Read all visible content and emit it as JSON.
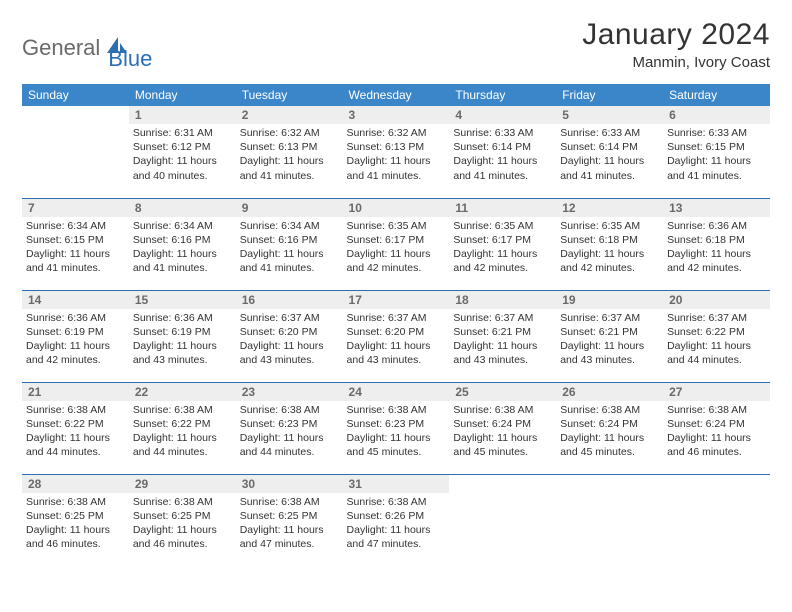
{
  "logo": {
    "part1": "General",
    "part2": "Blue"
  },
  "title": "January 2024",
  "location": "Manmin, Ivory Coast",
  "weekdays": [
    "Sunday",
    "Monday",
    "Tuesday",
    "Wednesday",
    "Thursday",
    "Friday",
    "Saturday"
  ],
  "colors": {
    "header_bg": "#3b86c9",
    "header_text": "#ffffff",
    "rule": "#2c6fb5",
    "daynum_bg": "#eeeeee",
    "daynum_text": "#6a6a6a",
    "logo_gray": "#6a6a6a",
    "logo_blue": "#2c6fb5"
  },
  "weeks": [
    [
      null,
      {
        "n": "1",
        "sunrise": "6:31 AM",
        "sunset": "6:12 PM",
        "daylight": "11 hours and 40 minutes."
      },
      {
        "n": "2",
        "sunrise": "6:32 AM",
        "sunset": "6:13 PM",
        "daylight": "11 hours and 41 minutes."
      },
      {
        "n": "3",
        "sunrise": "6:32 AM",
        "sunset": "6:13 PM",
        "daylight": "11 hours and 41 minutes."
      },
      {
        "n": "4",
        "sunrise": "6:33 AM",
        "sunset": "6:14 PM",
        "daylight": "11 hours and 41 minutes."
      },
      {
        "n": "5",
        "sunrise": "6:33 AM",
        "sunset": "6:14 PM",
        "daylight": "11 hours and 41 minutes."
      },
      {
        "n": "6",
        "sunrise": "6:33 AM",
        "sunset": "6:15 PM",
        "daylight": "11 hours and 41 minutes."
      }
    ],
    [
      {
        "n": "7",
        "sunrise": "6:34 AM",
        "sunset": "6:15 PM",
        "daylight": "11 hours and 41 minutes."
      },
      {
        "n": "8",
        "sunrise": "6:34 AM",
        "sunset": "6:16 PM",
        "daylight": "11 hours and 41 minutes."
      },
      {
        "n": "9",
        "sunrise": "6:34 AM",
        "sunset": "6:16 PM",
        "daylight": "11 hours and 41 minutes."
      },
      {
        "n": "10",
        "sunrise": "6:35 AM",
        "sunset": "6:17 PM",
        "daylight": "11 hours and 42 minutes."
      },
      {
        "n": "11",
        "sunrise": "6:35 AM",
        "sunset": "6:17 PM",
        "daylight": "11 hours and 42 minutes."
      },
      {
        "n": "12",
        "sunrise": "6:35 AM",
        "sunset": "6:18 PM",
        "daylight": "11 hours and 42 minutes."
      },
      {
        "n": "13",
        "sunrise": "6:36 AM",
        "sunset": "6:18 PM",
        "daylight": "11 hours and 42 minutes."
      }
    ],
    [
      {
        "n": "14",
        "sunrise": "6:36 AM",
        "sunset": "6:19 PM",
        "daylight": "11 hours and 42 minutes."
      },
      {
        "n": "15",
        "sunrise": "6:36 AM",
        "sunset": "6:19 PM",
        "daylight": "11 hours and 43 minutes."
      },
      {
        "n": "16",
        "sunrise": "6:37 AM",
        "sunset": "6:20 PM",
        "daylight": "11 hours and 43 minutes."
      },
      {
        "n": "17",
        "sunrise": "6:37 AM",
        "sunset": "6:20 PM",
        "daylight": "11 hours and 43 minutes."
      },
      {
        "n": "18",
        "sunrise": "6:37 AM",
        "sunset": "6:21 PM",
        "daylight": "11 hours and 43 minutes."
      },
      {
        "n": "19",
        "sunrise": "6:37 AM",
        "sunset": "6:21 PM",
        "daylight": "11 hours and 43 minutes."
      },
      {
        "n": "20",
        "sunrise": "6:37 AM",
        "sunset": "6:22 PM",
        "daylight": "11 hours and 44 minutes."
      }
    ],
    [
      {
        "n": "21",
        "sunrise": "6:38 AM",
        "sunset": "6:22 PM",
        "daylight": "11 hours and 44 minutes."
      },
      {
        "n": "22",
        "sunrise": "6:38 AM",
        "sunset": "6:22 PM",
        "daylight": "11 hours and 44 minutes."
      },
      {
        "n": "23",
        "sunrise": "6:38 AM",
        "sunset": "6:23 PM",
        "daylight": "11 hours and 44 minutes."
      },
      {
        "n": "24",
        "sunrise": "6:38 AM",
        "sunset": "6:23 PM",
        "daylight": "11 hours and 45 minutes."
      },
      {
        "n": "25",
        "sunrise": "6:38 AM",
        "sunset": "6:24 PM",
        "daylight": "11 hours and 45 minutes."
      },
      {
        "n": "26",
        "sunrise": "6:38 AM",
        "sunset": "6:24 PM",
        "daylight": "11 hours and 45 minutes."
      },
      {
        "n": "27",
        "sunrise": "6:38 AM",
        "sunset": "6:24 PM",
        "daylight": "11 hours and 46 minutes."
      }
    ],
    [
      {
        "n": "28",
        "sunrise": "6:38 AM",
        "sunset": "6:25 PM",
        "daylight": "11 hours and 46 minutes."
      },
      {
        "n": "29",
        "sunrise": "6:38 AM",
        "sunset": "6:25 PM",
        "daylight": "11 hours and 46 minutes."
      },
      {
        "n": "30",
        "sunrise": "6:38 AM",
        "sunset": "6:25 PM",
        "daylight": "11 hours and 47 minutes."
      },
      {
        "n": "31",
        "sunrise": "6:38 AM",
        "sunset": "6:26 PM",
        "daylight": "11 hours and 47 minutes."
      },
      null,
      null,
      null
    ]
  ]
}
